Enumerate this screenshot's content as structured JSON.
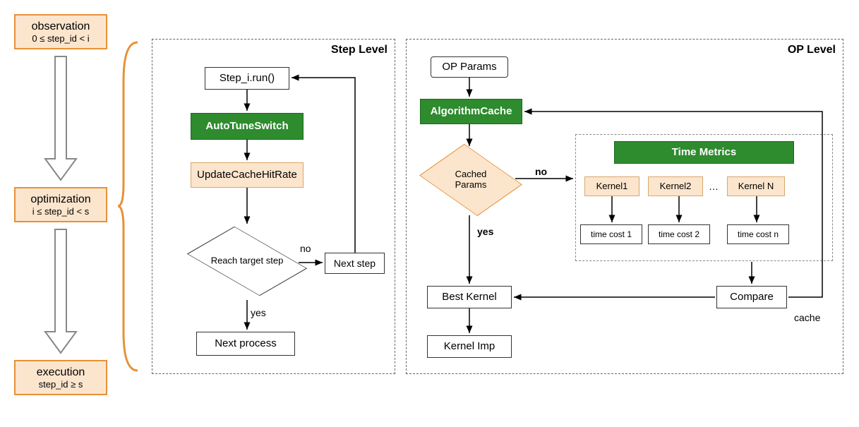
{
  "left": {
    "observation": {
      "title": "observation",
      "range": "0 ≤ step_id < i"
    },
    "optimization": {
      "title": "optimization",
      "range": "i ≤ step_id < s"
    },
    "execution": {
      "title": "execution",
      "range": "step_id ≥ s"
    }
  },
  "step_level": {
    "title": "Step Level",
    "run": "Step_i.run()",
    "autotune": "AutoTuneSwitch",
    "update": "UpdateCacheHitRate",
    "reach": "Reach target step",
    "no": "no",
    "yes": "yes",
    "next_step": "Next step",
    "next_process": "Next process"
  },
  "op_level": {
    "title": "OP Level",
    "params": "OP Params",
    "algcache": "AlgorithmCache",
    "cached": "Cached Params",
    "no": "no",
    "yes": "yes",
    "time_metrics": "Time Metrics",
    "kernels": [
      "Kernel1",
      "Kernel2",
      "Kernel N"
    ],
    "dots": "…",
    "costs": [
      "time cost 1",
      "time cost 2",
      "time cost n"
    ],
    "best": "Best Kernel",
    "compare": "Compare",
    "cache": "cache",
    "imp": "Kernel Imp"
  },
  "colors": {
    "orange_fill": "#fce5cd",
    "orange_border": "#e69138",
    "green_fill": "#2e8b2e",
    "brace": "#e69138"
  },
  "fonts": {
    "node": 15,
    "title": 16,
    "label": 14
  }
}
